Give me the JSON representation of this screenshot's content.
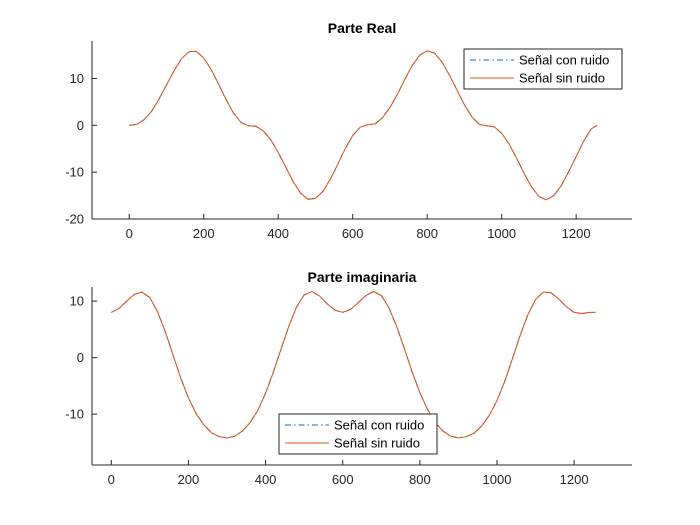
{
  "chart_data": [
    {
      "type": "line",
      "title": "Parte Real",
      "xlim": [
        -100,
        1350
      ],
      "ylim": [
        -20,
        18
      ],
      "xticks": [
        0,
        200,
        400,
        600,
        800,
        1000,
        1200
      ],
      "yticks": [
        -20,
        -10,
        0,
        10
      ],
      "ytick_labels": [
        "-20",
        "-10",
        "0",
        "10"
      ],
      "xtick_labels": [
        "0",
        "200",
        "400",
        "600",
        "800",
        "1000",
        "1200"
      ],
      "legend_placement": "top-right",
      "series": [
        {
          "name": "Señal con ruido",
          "style": "dashdot",
          "color": "#0072BD",
          "x": [
            0,
            20,
            40,
            60,
            80,
            100,
            120,
            140,
            160,
            180,
            200,
            220,
            240,
            260,
            280,
            300,
            320,
            340,
            360,
            380,
            400,
            420,
            440,
            460,
            480,
            500,
            520,
            540,
            560,
            580,
            600,
            620,
            640,
            660,
            680,
            700,
            720,
            740,
            760,
            780,
            800,
            820,
            840,
            860,
            880,
            900,
            920,
            940,
            960,
            980,
            1000,
            1020,
            1040,
            1060,
            1080,
            1100,
            1120,
            1140,
            1160,
            1180,
            1200,
            1220,
            1240,
            1256
          ],
          "y": [
            0.0,
            0.2,
            1.2,
            3.0,
            5.6,
            8.6,
            11.6,
            14.2,
            15.7,
            15.8,
            14.4,
            11.9,
            8.8,
            5.5,
            2.6,
            0.6,
            -0.1,
            -0.2,
            -1.2,
            -3.1,
            -5.8,
            -8.9,
            -12.0,
            -14.5,
            -15.8,
            -15.6,
            -14.1,
            -11.5,
            -8.3,
            -5.0,
            -2.2,
            -0.4,
            0.1,
            0.3,
            1.6,
            3.8,
            6.6,
            9.8,
            12.8,
            15.0,
            15.9,
            15.4,
            13.5,
            10.7,
            7.5,
            4.4,
            1.8,
            0.2,
            -0.1,
            -0.3,
            -1.7,
            -4.0,
            -7.0,
            -10.2,
            -13.1,
            -15.2,
            -15.9,
            -15.0,
            -12.9,
            -9.9,
            -6.7,
            -3.4,
            -0.8,
            0.0
          ]
        },
        {
          "name": "Señal sin ruido",
          "style": "solid",
          "color": "#D95319",
          "x": [
            0,
            20,
            40,
            60,
            80,
            100,
            120,
            140,
            160,
            180,
            200,
            220,
            240,
            260,
            280,
            300,
            320,
            340,
            360,
            380,
            400,
            420,
            440,
            460,
            480,
            500,
            520,
            540,
            560,
            580,
            600,
            620,
            640,
            660,
            680,
            700,
            720,
            740,
            760,
            780,
            800,
            820,
            840,
            860,
            880,
            900,
            920,
            940,
            960,
            980,
            1000,
            1020,
            1040,
            1060,
            1080,
            1100,
            1120,
            1140,
            1160,
            1180,
            1200,
            1220,
            1240,
            1256
          ],
          "y": [
            0.0,
            0.2,
            1.2,
            3.0,
            5.6,
            8.6,
            11.6,
            14.2,
            15.7,
            15.8,
            14.4,
            11.9,
            8.8,
            5.5,
            2.6,
            0.6,
            -0.1,
            -0.2,
            -1.2,
            -3.1,
            -5.8,
            -8.9,
            -12.0,
            -14.5,
            -15.8,
            -15.6,
            -14.1,
            -11.5,
            -8.3,
            -5.0,
            -2.2,
            -0.4,
            0.1,
            0.3,
            1.6,
            3.8,
            6.6,
            9.8,
            12.8,
            15.0,
            15.9,
            15.4,
            13.5,
            10.7,
            7.5,
            4.4,
            1.8,
            0.2,
            -0.1,
            -0.3,
            -1.7,
            -4.0,
            -7.0,
            -10.2,
            -13.1,
            -15.2,
            -15.9,
            -15.0,
            -12.9,
            -9.9,
            -6.7,
            -3.4,
            -0.8,
            0.0
          ]
        }
      ]
    },
    {
      "type": "line",
      "title": "Parte imaginaria",
      "xlim": [
        -50,
        1350
      ],
      "ylim": [
        -19,
        12.5
      ],
      "xticks": [
        0,
        200,
        400,
        600,
        800,
        1000,
        1200
      ],
      "yticks": [
        -10,
        0,
        10
      ],
      "ytick_labels": [
        "-10",
        "0",
        "10"
      ],
      "xtick_labels": [
        "0",
        "200",
        "400",
        "600",
        "800",
        "1000",
        "1200"
      ],
      "legend_placement": "bottom-center",
      "series": [
        {
          "name": "Señal con ruido",
          "style": "dashdot",
          "color": "#0072BD",
          "x": [
            0,
            20,
            40,
            60,
            80,
            100,
            120,
            140,
            160,
            180,
            200,
            220,
            240,
            260,
            280,
            300,
            320,
            340,
            360,
            380,
            400,
            420,
            440,
            460,
            480,
            500,
            520,
            540,
            560,
            580,
            600,
            620,
            640,
            660,
            680,
            700,
            720,
            740,
            760,
            780,
            800,
            820,
            840,
            860,
            880,
            900,
            920,
            940,
            960,
            980,
            1000,
            1020,
            1040,
            1060,
            1080,
            1100,
            1120,
            1140,
            1160,
            1180,
            1200,
            1220,
            1240,
            1256
          ],
          "y": [
            8.0,
            8.7,
            10.0,
            11.2,
            11.6,
            10.6,
            8.1,
            4.6,
            0.5,
            -3.6,
            -7.1,
            -9.9,
            -11.9,
            -13.3,
            -14.0,
            -14.2,
            -13.9,
            -13.0,
            -11.5,
            -9.3,
            -6.3,
            -2.6,
            1.5,
            5.5,
            8.9,
            11.1,
            11.7,
            10.9,
            9.5,
            8.4,
            8.0,
            8.5,
            9.7,
            11.0,
            11.7,
            11.0,
            8.8,
            5.5,
            1.6,
            -2.5,
            -6.2,
            -9.2,
            -11.5,
            -13.0,
            -13.9,
            -14.2,
            -14.0,
            -13.4,
            -12.1,
            -10.2,
            -7.6,
            -4.2,
            -0.2,
            3.9,
            7.6,
            10.3,
            11.6,
            11.5,
            10.4,
            9.0,
            8.0,
            7.8,
            8.0,
            8.0
          ]
        },
        {
          "name": "Señal sin ruido",
          "style": "solid",
          "color": "#D95319",
          "x": [
            0,
            20,
            40,
            60,
            80,
            100,
            120,
            140,
            160,
            180,
            200,
            220,
            240,
            260,
            280,
            300,
            320,
            340,
            360,
            380,
            400,
            420,
            440,
            460,
            480,
            500,
            520,
            540,
            560,
            580,
            600,
            620,
            640,
            660,
            680,
            700,
            720,
            740,
            760,
            780,
            800,
            820,
            840,
            860,
            880,
            900,
            920,
            940,
            960,
            980,
            1000,
            1020,
            1040,
            1060,
            1080,
            1100,
            1120,
            1140,
            1160,
            1180,
            1200,
            1220,
            1240,
            1256
          ],
          "y": [
            8.0,
            8.7,
            10.0,
            11.2,
            11.6,
            10.6,
            8.1,
            4.6,
            0.5,
            -3.6,
            -7.1,
            -9.9,
            -11.9,
            -13.3,
            -14.0,
            -14.2,
            -13.9,
            -13.0,
            -11.5,
            -9.3,
            -6.3,
            -2.6,
            1.5,
            5.5,
            8.9,
            11.1,
            11.7,
            10.9,
            9.5,
            8.4,
            8.0,
            8.5,
            9.7,
            11.0,
            11.7,
            11.0,
            8.8,
            5.5,
            1.6,
            -2.5,
            -6.2,
            -9.2,
            -11.5,
            -13.0,
            -13.9,
            -14.2,
            -14.0,
            -13.4,
            -12.1,
            -10.2,
            -7.6,
            -4.2,
            -0.2,
            3.9,
            7.6,
            10.3,
            11.6,
            11.5,
            10.4,
            9.0,
            8.0,
            7.8,
            8.0,
            8.0
          ]
        }
      ]
    }
  ]
}
